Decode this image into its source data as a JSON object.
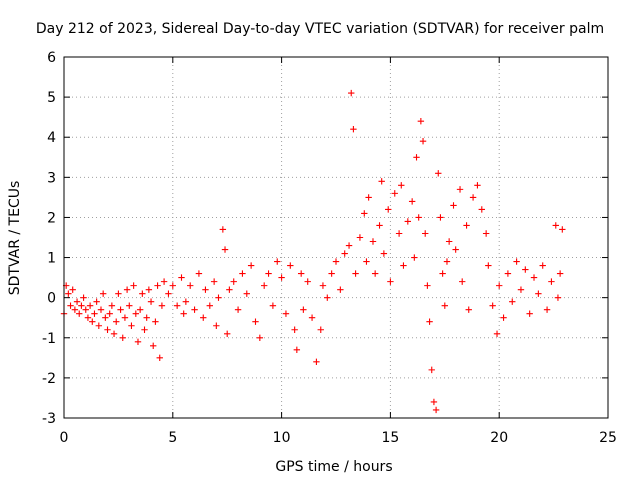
{
  "chart_data": {
    "type": "scatter",
    "title": "Day 212 of 2023, Sidereal Day-to-day VTEC variation (SDTVAR) for receiver palm",
    "xlabel": "GPS time / hours",
    "ylabel": "SDTVAR / TECUs",
    "xlim": [
      0,
      25
    ],
    "ylim": [
      -3,
      6
    ],
    "xticks": [
      0,
      5,
      10,
      15,
      20,
      25
    ],
    "xtick_labels": [
      "0",
      "5",
      "10",
      "15",
      "20",
      "25"
    ],
    "yticks": [
      -3,
      -2,
      -1,
      0,
      1,
      2,
      3,
      4,
      5,
      6
    ],
    "ytick_labels": [
      "-3",
      "-2",
      "-1",
      "0",
      "1",
      "2",
      "3",
      "4",
      "5",
      "6"
    ],
    "grid": true,
    "marker": "+",
    "series": [
      {
        "name": "SDTVAR",
        "color": "#ff0000",
        "points": [
          [
            0.0,
            -0.4
          ],
          [
            0.1,
            0.3
          ],
          [
            0.2,
            0.1
          ],
          [
            0.3,
            -0.2
          ],
          [
            0.4,
            0.2
          ],
          [
            0.5,
            -0.3
          ],
          [
            0.6,
            -0.1
          ],
          [
            0.7,
            -0.4
          ],
          [
            0.8,
            -0.2
          ],
          [
            0.9,
            0.0
          ],
          [
            1.0,
            -0.3
          ],
          [
            1.1,
            -0.5
          ],
          [
            1.2,
            -0.2
          ],
          [
            1.3,
            -0.6
          ],
          [
            1.4,
            -0.4
          ],
          [
            1.5,
            -0.1
          ],
          [
            1.6,
            -0.7
          ],
          [
            1.7,
            -0.3
          ],
          [
            1.8,
            0.1
          ],
          [
            1.9,
            -0.5
          ],
          [
            2.0,
            -0.8
          ],
          [
            2.1,
            -0.4
          ],
          [
            2.2,
            -0.2
          ],
          [
            2.3,
            -0.9
          ],
          [
            2.4,
            -0.6
          ],
          [
            2.5,
            0.1
          ],
          [
            2.6,
            -0.3
          ],
          [
            2.7,
            -1.0
          ],
          [
            2.8,
            -0.5
          ],
          [
            2.9,
            0.2
          ],
          [
            3.0,
            -0.2
          ],
          [
            3.1,
            -0.7
          ],
          [
            3.2,
            0.3
          ],
          [
            3.3,
            -0.4
          ],
          [
            3.4,
            -1.1
          ],
          [
            3.5,
            -0.3
          ],
          [
            3.6,
            0.1
          ],
          [
            3.7,
            -0.8
          ],
          [
            3.8,
            -0.5
          ],
          [
            3.9,
            0.2
          ],
          [
            4.0,
            -0.1
          ],
          [
            4.1,
            -1.2
          ],
          [
            4.2,
            -0.6
          ],
          [
            4.3,
            0.3
          ],
          [
            4.4,
            -1.5
          ],
          [
            4.5,
            -0.2
          ],
          [
            4.6,
            0.4
          ],
          [
            4.8,
            0.1
          ],
          [
            5.0,
            0.3
          ],
          [
            5.2,
            -0.2
          ],
          [
            5.4,
            0.5
          ],
          [
            5.5,
            -0.4
          ],
          [
            5.6,
            -0.1
          ],
          [
            5.8,
            0.3
          ],
          [
            6.0,
            -0.3
          ],
          [
            6.2,
            0.6
          ],
          [
            6.4,
            -0.5
          ],
          [
            6.5,
            0.2
          ],
          [
            6.7,
            -0.2
          ],
          [
            6.9,
            0.4
          ],
          [
            7.0,
            -0.7
          ],
          [
            7.1,
            0.0
          ],
          [
            7.3,
            1.7
          ],
          [
            7.4,
            1.2
          ],
          [
            7.5,
            -0.9
          ],
          [
            7.6,
            0.2
          ],
          [
            7.8,
            0.4
          ],
          [
            8.0,
            -0.3
          ],
          [
            8.2,
            0.6
          ],
          [
            8.4,
            0.1
          ],
          [
            8.6,
            0.8
          ],
          [
            8.8,
            -0.6
          ],
          [
            9.0,
            -1.0
          ],
          [
            9.2,
            0.3
          ],
          [
            9.4,
            0.6
          ],
          [
            9.6,
            -0.2
          ],
          [
            9.8,
            0.9
          ],
          [
            10.0,
            0.5
          ],
          [
            10.2,
            -0.4
          ],
          [
            10.4,
            0.8
          ],
          [
            10.6,
            -0.8
          ],
          [
            10.7,
            -1.3
          ],
          [
            10.9,
            0.6
          ],
          [
            11.0,
            -0.3
          ],
          [
            11.2,
            0.4
          ],
          [
            11.4,
            -0.5
          ],
          [
            11.6,
            -1.6
          ],
          [
            11.8,
            -0.8
          ],
          [
            11.9,
            0.3
          ],
          [
            12.1,
            0.0
          ],
          [
            12.3,
            0.6
          ],
          [
            12.5,
            0.9
          ],
          [
            12.7,
            0.2
          ],
          [
            12.9,
            1.1
          ],
          [
            13.1,
            1.3
          ],
          [
            13.2,
            5.1
          ],
          [
            13.3,
            4.2
          ],
          [
            13.4,
            0.6
          ],
          [
            13.6,
            1.5
          ],
          [
            13.8,
            2.1
          ],
          [
            13.9,
            0.9
          ],
          [
            14.0,
            2.5
          ],
          [
            14.2,
            1.4
          ],
          [
            14.3,
            0.6
          ],
          [
            14.5,
            1.8
          ],
          [
            14.6,
            2.9
          ],
          [
            14.7,
            1.1
          ],
          [
            14.9,
            2.2
          ],
          [
            15.0,
            0.4
          ],
          [
            15.2,
            2.6
          ],
          [
            15.4,
            1.6
          ],
          [
            15.5,
            2.8
          ],
          [
            15.6,
            0.8
          ],
          [
            15.8,
            1.9
          ],
          [
            16.0,
            2.4
          ],
          [
            16.1,
            1.0
          ],
          [
            16.2,
            3.5
          ],
          [
            16.3,
            2.0
          ],
          [
            16.4,
            4.4
          ],
          [
            16.5,
            3.9
          ],
          [
            16.6,
            1.6
          ],
          [
            16.7,
            0.3
          ],
          [
            16.8,
            -0.6
          ],
          [
            16.9,
            -1.8
          ],
          [
            17.0,
            -2.6
          ],
          [
            17.1,
            -2.8
          ],
          [
            17.2,
            3.1
          ],
          [
            17.3,
            2.0
          ],
          [
            17.4,
            0.6
          ],
          [
            17.5,
            -0.2
          ],
          [
            17.6,
            0.9
          ],
          [
            17.7,
            1.4
          ],
          [
            17.9,
            2.3
          ],
          [
            18.0,
            1.2
          ],
          [
            18.2,
            2.7
          ],
          [
            18.3,
            0.4
          ],
          [
            18.5,
            1.8
          ],
          [
            18.6,
            -0.3
          ],
          [
            18.8,
            2.5
          ],
          [
            19.0,
            2.8
          ],
          [
            19.2,
            2.2
          ],
          [
            19.4,
            1.6
          ],
          [
            19.5,
            0.8
          ],
          [
            19.7,
            -0.2
          ],
          [
            19.9,
            -0.9
          ],
          [
            20.0,
            0.3
          ],
          [
            20.2,
            -0.5
          ],
          [
            20.4,
            0.6
          ],
          [
            20.6,
            -0.1
          ],
          [
            20.8,
            0.9
          ],
          [
            21.0,
            0.2
          ],
          [
            21.2,
            0.7
          ],
          [
            21.4,
            -0.4
          ],
          [
            21.6,
            0.5
          ],
          [
            21.8,
            0.1
          ],
          [
            22.0,
            0.8
          ],
          [
            22.2,
            -0.3
          ],
          [
            22.4,
            0.4
          ],
          [
            22.6,
            1.8
          ],
          [
            22.7,
            0.0
          ],
          [
            22.8,
            0.6
          ],
          [
            22.9,
            1.7
          ]
        ]
      }
    ]
  }
}
